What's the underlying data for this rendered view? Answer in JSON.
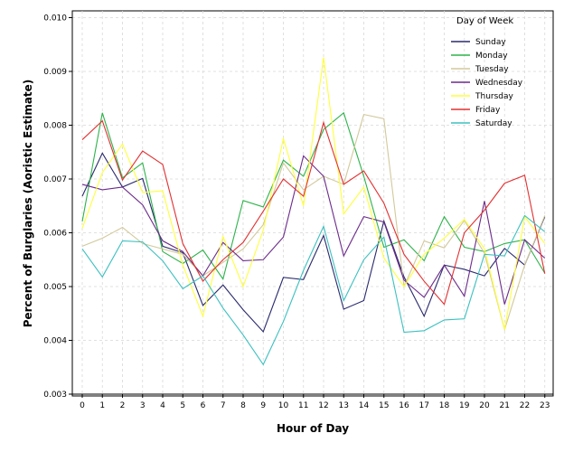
{
  "chart_data": {
    "type": "line",
    "xlabel": "Hour of Day",
    "ylabel": "Percent of Burglaries (Aoristic Estimate)",
    "x": [
      0,
      1,
      2,
      3,
      4,
      5,
      6,
      7,
      8,
      9,
      10,
      11,
      12,
      13,
      14,
      15,
      16,
      17,
      18,
      19,
      20,
      21,
      22,
      23
    ],
    "x_tick_labels": [
      "0",
      "1",
      "2",
      "3",
      "4",
      "5",
      "6",
      "7",
      "8",
      "9",
      "10",
      "11",
      "12",
      "13",
      "14",
      "15",
      "16",
      "17",
      "18",
      "19",
      "20",
      "21",
      "22",
      "23"
    ],
    "ylim": [
      0.003,
      0.0101
    ],
    "y_ticks": [
      0.003,
      0.004,
      0.005,
      0.006,
      0.007,
      0.008,
      0.009,
      0.01
    ],
    "y_tick_labels": [
      "0.003",
      "0.004",
      "0.005",
      "0.006",
      "0.007",
      "0.008",
      "0.009",
      "0.010"
    ],
    "grid": true,
    "legend": {
      "title": "Day of Week",
      "placement": "top-right"
    },
    "series": [
      {
        "name": "Sunday",
        "color": "#2a2a6e",
        "values": [
          0.00668,
          0.00748,
          0.00685,
          0.00701,
          0.00575,
          0.00563,
          0.00465,
          0.00503,
          0.00457,
          0.00416,
          0.00517,
          0.00513,
          0.00595,
          0.00458,
          0.00474,
          0.00622,
          0.00518,
          0.00445,
          0.0054,
          0.00532,
          0.0052,
          0.00571,
          0.0054,
          0.0063
        ]
      },
      {
        "name": "Monday",
        "color": "#2db34a",
        "values": [
          0.00621,
          0.00823,
          0.00702,
          0.0073,
          0.00565,
          0.00543,
          0.00568,
          0.00514,
          0.0066,
          0.00648,
          0.00735,
          0.00705,
          0.00792,
          0.00823,
          0.00705,
          0.00573,
          0.00587,
          0.00548,
          0.0063,
          0.00573,
          0.00565,
          0.0058,
          0.00587,
          0.00525
        ]
      },
      {
        "name": "Tuesday",
        "color": "#d2c99a",
        "values": [
          0.00575,
          0.0059,
          0.0061,
          0.0058,
          0.0057,
          0.0056,
          0.0052,
          0.00545,
          0.0057,
          0.00615,
          0.0073,
          0.0068,
          0.00705,
          0.0069,
          0.0082,
          0.00812,
          0.005,
          0.00585,
          0.00572,
          0.00623,
          0.00562,
          0.0042,
          0.0054,
          0.00632
        ]
      },
      {
        "name": "Wednesday",
        "color": "#6b2a8a",
        "values": [
          0.0069,
          0.0068,
          0.00685,
          0.00652,
          0.00585,
          0.00565,
          0.0052,
          0.00582,
          0.00548,
          0.0055,
          0.00592,
          0.00743,
          0.00705,
          0.00557,
          0.0063,
          0.0062,
          0.00512,
          0.0048,
          0.0054,
          0.00482,
          0.00659,
          0.00467,
          0.00587,
          0.00553
        ]
      },
      {
        "name": "Thursday",
        "color": "#ffff3a",
        "values": [
          0.00608,
          0.00712,
          0.00765,
          0.00675,
          0.00678,
          0.0054,
          0.00445,
          0.00593,
          0.005,
          0.00605,
          0.00775,
          0.0065,
          0.00926,
          0.00635,
          0.00685,
          0.00553,
          0.005,
          0.0056,
          0.0059,
          0.00625,
          0.0057,
          0.0042,
          0.0063,
          0.0058
        ]
      },
      {
        "name": "Friday",
        "color": "#e23030",
        "values": [
          0.00773,
          0.00808,
          0.00698,
          0.00752,
          0.00727,
          0.0058,
          0.0051,
          0.0055,
          0.00582,
          0.0064,
          0.007,
          0.00668,
          0.00805,
          0.0069,
          0.00715,
          0.00655,
          0.0056,
          0.0051,
          0.00467,
          0.006,
          0.00642,
          0.00692,
          0.00707,
          0.00524
        ]
      },
      {
        "name": "Saturday",
        "color": "#3cc0c0",
        "values": [
          0.0057,
          0.00518,
          0.00585,
          0.00583,
          0.00548,
          0.00496,
          0.0052,
          0.0046,
          0.0041,
          0.00355,
          0.00435,
          0.0053,
          0.00612,
          0.00474,
          0.0055,
          0.00592,
          0.00415,
          0.00418,
          0.00438,
          0.0044,
          0.0056,
          0.00557,
          0.00632,
          0.00602
        ]
      }
    ]
  }
}
